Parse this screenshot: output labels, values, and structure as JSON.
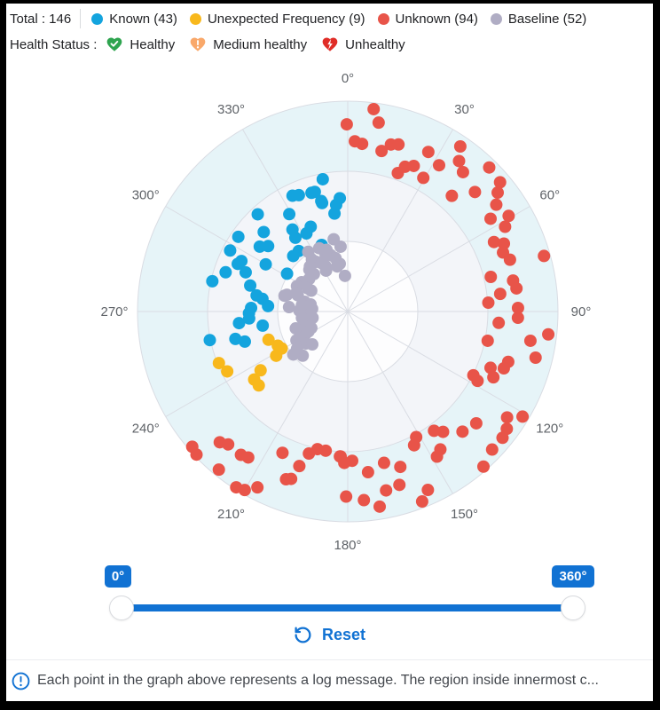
{
  "colors": {
    "accent": "#1172d3"
  },
  "header": {
    "total_label": "Total : 146",
    "total_value": 146,
    "legend": [
      {
        "label": "Known (43)",
        "color": "#14a4de"
      },
      {
        "label": "Unexpected Frequency (9)",
        "color": "#f8b81c"
      },
      {
        "label": "Unknown (94)",
        "color": "#e85449"
      },
      {
        "label": "Baseline (52)",
        "color": "#b0adc4"
      }
    ],
    "health": {
      "title": "Health Status :",
      "items": [
        {
          "label": "Healthy",
          "color": "#2ea44f",
          "glyph": "check"
        },
        {
          "label": "Medium healthy",
          "color": "#f9a86a",
          "glyph": "exclamation"
        },
        {
          "label": "Unhealthy",
          "color": "#e02d27",
          "glyph": "bolt"
        }
      ]
    }
  },
  "chart_data": {
    "type": "scatter",
    "subtype": "polar",
    "title": "",
    "angle_ticks": [
      "0°",
      "30°",
      "60°",
      "90°",
      "120°",
      "150°",
      "180°",
      "210°",
      "240°",
      "270°",
      "300°",
      "330°"
    ],
    "angle_direction": "clockwise_from_top",
    "radial_range": [
      0,
      1
    ],
    "ring_colors_outer_to_inner": [
      "#e6f4f8",
      "#f3f5f9",
      "#fdfdfe"
    ],
    "grid_color": "#d9dce3",
    "legend_position": "top",
    "series": [
      {
        "name": "Known",
        "count": 43,
        "color": "#14a4de",
        "points": [
          [
            349.3,
            0.64
          ],
          [
            343.0,
            0.59
          ],
          [
            334.5,
            0.61
          ],
          [
            346.5,
            0.54
          ],
          [
            356.0,
            0.54
          ],
          [
            353.8,
            0.51
          ],
          [
            352.3,
            0.47
          ],
          [
            317.2,
            0.63
          ],
          [
            329.0,
            0.54
          ],
          [
            304.3,
            0.63
          ],
          [
            313.4,
            0.55
          ],
          [
            336.4,
            0.44
          ],
          [
            332.1,
            0.42
          ],
          [
            306.4,
            0.52
          ],
          [
            309.4,
            0.49
          ],
          [
            324.6,
            0.43
          ],
          [
            321.0,
            0.37
          ],
          [
            315.5,
            0.37
          ],
          [
            297.4,
            0.63
          ],
          [
            293.4,
            0.57
          ],
          [
            295.4,
            0.56
          ],
          [
            287.8,
            0.61
          ],
          [
            299.9,
            0.45
          ],
          [
            301.9,
            0.34
          ],
          [
            282.6,
            0.66
          ],
          [
            284.9,
            0.48
          ],
          [
            280.0,
            0.44
          ],
          [
            278.4,
            0.41
          ],
          [
            272.1,
            0.46
          ],
          [
            273.9,
            0.38
          ],
          [
            269.0,
            0.47
          ],
          [
            263.9,
            0.52
          ],
          [
            260.6,
            0.41
          ],
          [
            258.3,
            0.67
          ],
          [
            256.3,
            0.55
          ],
          [
            253.7,
            0.51
          ],
          [
            337.2,
            0.6
          ],
          [
            344.6,
            0.59
          ],
          [
            346.7,
            0.53
          ],
          [
            338.6,
            0.34
          ],
          [
            326.0,
            0.47
          ],
          [
            291.0,
            0.52
          ],
          [
            266.0,
            0.47
          ]
        ]
      },
      {
        "name": "Unexpected Frequency",
        "count": 9,
        "color": "#f8b81c",
        "points": [
          [
            250.4,
            0.4
          ],
          [
            244.0,
            0.37
          ],
          [
            240.8,
            0.36
          ],
          [
            238.3,
            0.4
          ],
          [
            248.2,
            0.66
          ],
          [
            243.6,
            0.64
          ],
          [
            236.0,
            0.5
          ],
          [
            234.0,
            0.55
          ],
          [
            230.3,
            0.55
          ]
        ]
      },
      {
        "name": "Unknown",
        "count": 94,
        "color": "#e85449",
        "points": [
          [
            7.3,
            0.97
          ],
          [
            9.3,
            0.91
          ],
          [
            359.7,
            0.89
          ],
          [
            2.4,
            0.81
          ],
          [
            4.9,
            0.8
          ],
          [
            11.9,
            0.78
          ],
          [
            14.5,
            0.82
          ],
          [
            16.9,
            0.83
          ],
          [
            26.8,
            0.85
          ],
          [
            32.0,
            0.82
          ],
          [
            34.3,
            0.95
          ],
          [
            36.5,
            0.89
          ],
          [
            39.6,
            0.86
          ],
          [
            21.6,
            0.74
          ],
          [
            24.4,
            0.76
          ],
          [
            19.9,
            0.7
          ],
          [
            29.5,
            0.73
          ],
          [
            44.5,
            0.96
          ],
          [
            49.7,
            0.95
          ],
          [
            51.6,
            0.91
          ],
          [
            46.8,
            0.83
          ],
          [
            42.0,
            0.74
          ],
          [
            54.3,
            0.87
          ],
          [
            57.0,
            0.81
          ],
          [
            59.3,
            0.89
          ],
          [
            61.7,
            0.85
          ],
          [
            64.6,
            0.77
          ],
          [
            66.5,
            0.81
          ],
          [
            69.2,
            0.79
          ],
          [
            72.3,
            0.81
          ],
          [
            74.2,
            0.97
          ],
          [
            76.4,
            0.7
          ],
          [
            79.4,
            0.8
          ],
          [
            82.2,
            0.81
          ],
          [
            83.4,
            0.73
          ],
          [
            86.4,
            0.67
          ],
          [
            88.8,
            0.81
          ],
          [
            92.1,
            0.81
          ],
          [
            94.3,
            0.72
          ],
          [
            96.5,
            0.96
          ],
          [
            99.1,
            0.88
          ],
          [
            101.8,
            0.68
          ],
          [
            103.8,
            0.92
          ],
          [
            107.4,
            0.8
          ],
          [
            110.0,
            0.79
          ],
          [
            111.5,
            0.73
          ],
          [
            114.3,
            0.76
          ],
          [
            116.9,
            0.67
          ],
          [
            118.1,
            0.7
          ],
          [
            121.0,
            0.97
          ],
          [
            123.6,
            0.91
          ],
          [
            126.4,
            0.94
          ],
          [
            129.2,
            0.95
          ],
          [
            131.0,
            0.81
          ],
          [
            133.7,
            0.95
          ],
          [
            136.3,
            0.79
          ],
          [
            138.8,
            0.98
          ],
          [
            141.6,
            0.73
          ],
          [
            144.1,
            0.7
          ],
          [
            146.1,
            0.79
          ],
          [
            148.4,
            0.81
          ],
          [
            151.4,
            0.68
          ],
          [
            153.6,
            0.71
          ],
          [
            155.8,
            0.93
          ],
          [
            158.6,
            0.97
          ],
          [
            161.3,
            0.78
          ],
          [
            163.4,
            0.86
          ],
          [
            166.5,
            0.74
          ],
          [
            167.9,
            0.87
          ],
          [
            170.7,
            0.94
          ],
          [
            172.8,
            0.77
          ],
          [
            175.1,
            0.9
          ],
          [
            178.3,
            0.71
          ],
          [
            180.5,
            0.88
          ],
          [
            182.8,
            0.69
          ],
          [
            229.0,
            0.98
          ],
          [
            226.6,
            0.99
          ],
          [
            224.4,
            0.87
          ],
          [
            222.0,
            0.85
          ],
          [
            219.2,
            0.97
          ],
          [
            216.7,
            0.85
          ],
          [
            214.3,
            0.84
          ],
          [
            212.4,
            0.99
          ],
          [
            210.0,
            0.98
          ],
          [
            207.2,
            0.94
          ],
          [
            204.8,
            0.74
          ],
          [
            200.2,
            0.85
          ],
          [
            198.7,
            0.84
          ],
          [
            197.4,
            0.77
          ],
          [
            195.3,
            0.7
          ],
          [
            192.4,
            0.67
          ],
          [
            189.0,
            0.67
          ],
          [
            183.1,
            0.69
          ],
          [
            181.3,
            0.72
          ]
        ]
      },
      {
        "name": "Baseline",
        "count": 52,
        "color": "#b0adc4",
        "points": [
          [
            353.7,
            0.31
          ],
          [
            335.7,
            0.33
          ],
          [
            338.7,
            0.29
          ],
          [
            347.1,
            0.26
          ],
          [
            350.5,
            0.23
          ],
          [
            327.5,
            0.28
          ],
          [
            317.5,
            0.27
          ],
          [
            317.9,
            0.24
          ],
          [
            333.9,
            0.24
          ],
          [
            355.6,
            0.17
          ],
          [
            302.4,
            0.26
          ],
          [
            296.6,
            0.27
          ],
          [
            284.0,
            0.31
          ],
          [
            274.3,
            0.28
          ],
          [
            280.8,
            0.18
          ],
          [
            268.8,
            0.2
          ],
          [
            259.8,
            0.17
          ],
          [
            250.0,
            0.2
          ],
          [
            247.0,
            0.24
          ],
          [
            241.6,
            0.23
          ],
          [
            240.7,
            0.28
          ],
          [
            274.3,
            0.17
          ],
          [
            326.5,
            0.34
          ],
          [
            343.2,
            0.28
          ],
          [
            325.4,
            0.3
          ],
          [
            331.8,
            0.26
          ],
          [
            346.8,
            0.22
          ],
          [
            299.7,
            0.2
          ],
          [
            289.6,
            0.26
          ],
          [
            285.4,
            0.3
          ],
          [
            282.7,
            0.21
          ],
          [
            271.0,
            0.23
          ],
          [
            258.4,
            0.19
          ],
          [
            251.2,
            0.22
          ],
          [
            245.7,
            0.19
          ],
          [
            241.8,
            0.26
          ],
          [
            232.5,
            0.25
          ],
          [
            233.6,
            0.3
          ],
          [
            225.6,
            0.3
          ],
          [
            231.7,
            0.33
          ],
          [
            227.2,
            0.23
          ],
          [
            349.0,
            0.35
          ],
          [
            341.0,
            0.31
          ],
          [
            332.0,
            0.22
          ],
          [
            320.0,
            0.28
          ],
          [
            310.0,
            0.24
          ],
          [
            300.0,
            0.22
          ],
          [
            288.0,
            0.25
          ],
          [
            278.0,
            0.22
          ],
          [
            262.0,
            0.22
          ],
          [
            252.0,
            0.26
          ],
          [
            243.0,
            0.21
          ]
        ]
      }
    ]
  },
  "slider": {
    "min_label": "0°",
    "max_label": "360°"
  },
  "reset_label": "Reset",
  "info_text": "Each point in the graph above represents a log message. The region inside innermost c..."
}
